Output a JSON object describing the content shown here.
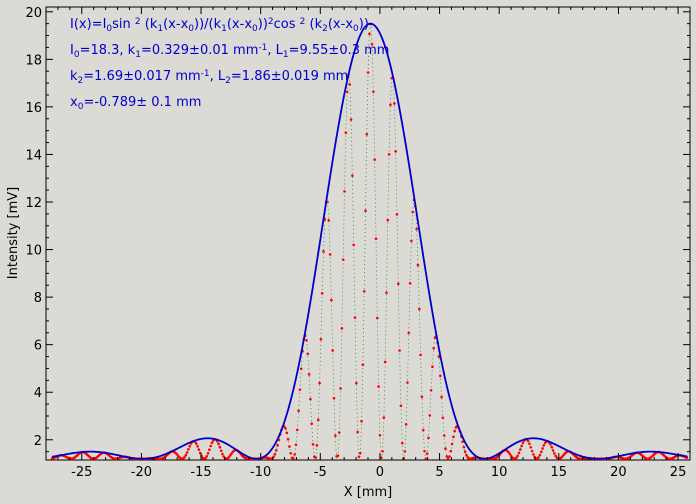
{
  "chart_data": {
    "type": "scatter",
    "title": "",
    "xlabel": "X [mm]",
    "ylabel": "Intensity [mV]",
    "xlim": [
      -28,
      26
    ],
    "ylim": [
      1.15,
      20.2
    ],
    "x_ticks": [
      -25,
      -20,
      -15,
      -10,
      -5,
      0,
      5,
      10,
      15,
      20,
      25
    ],
    "y_ticks": [
      2,
      4,
      6,
      8,
      10,
      12,
      14,
      16,
      18,
      20
    ],
    "grid": false,
    "annotations": [
      "I(x)=I0sin 2 (k1(x-x0))/(k1(x-x0))2cos 2 (k2(x-x0))",
      "I0=18.3,  k1=0.329±0.01 mm-1,   L1=9.55±0.3 mm",
      "k2=1.69±0.017 mm-1,   L2=1.86±0.019 mm",
      "x0=-0.789±   0.1 mm"
    ],
    "fit_parameters": {
      "I0": 18.3,
      "k1": 0.329,
      "k2": 1.69,
      "x0": -0.789,
      "baseline": 1.2
    },
    "envelope_peak": 19.5,
    "x_range": [
      -27.5,
      25.8
    ],
    "series": [
      {
        "role": "envelope",
        "color": "#0000cc"
      },
      {
        "role": "measured",
        "color": "#ff0000"
      },
      {
        "role": "fit",
        "color": "#2e7d32"
      }
    ]
  }
}
